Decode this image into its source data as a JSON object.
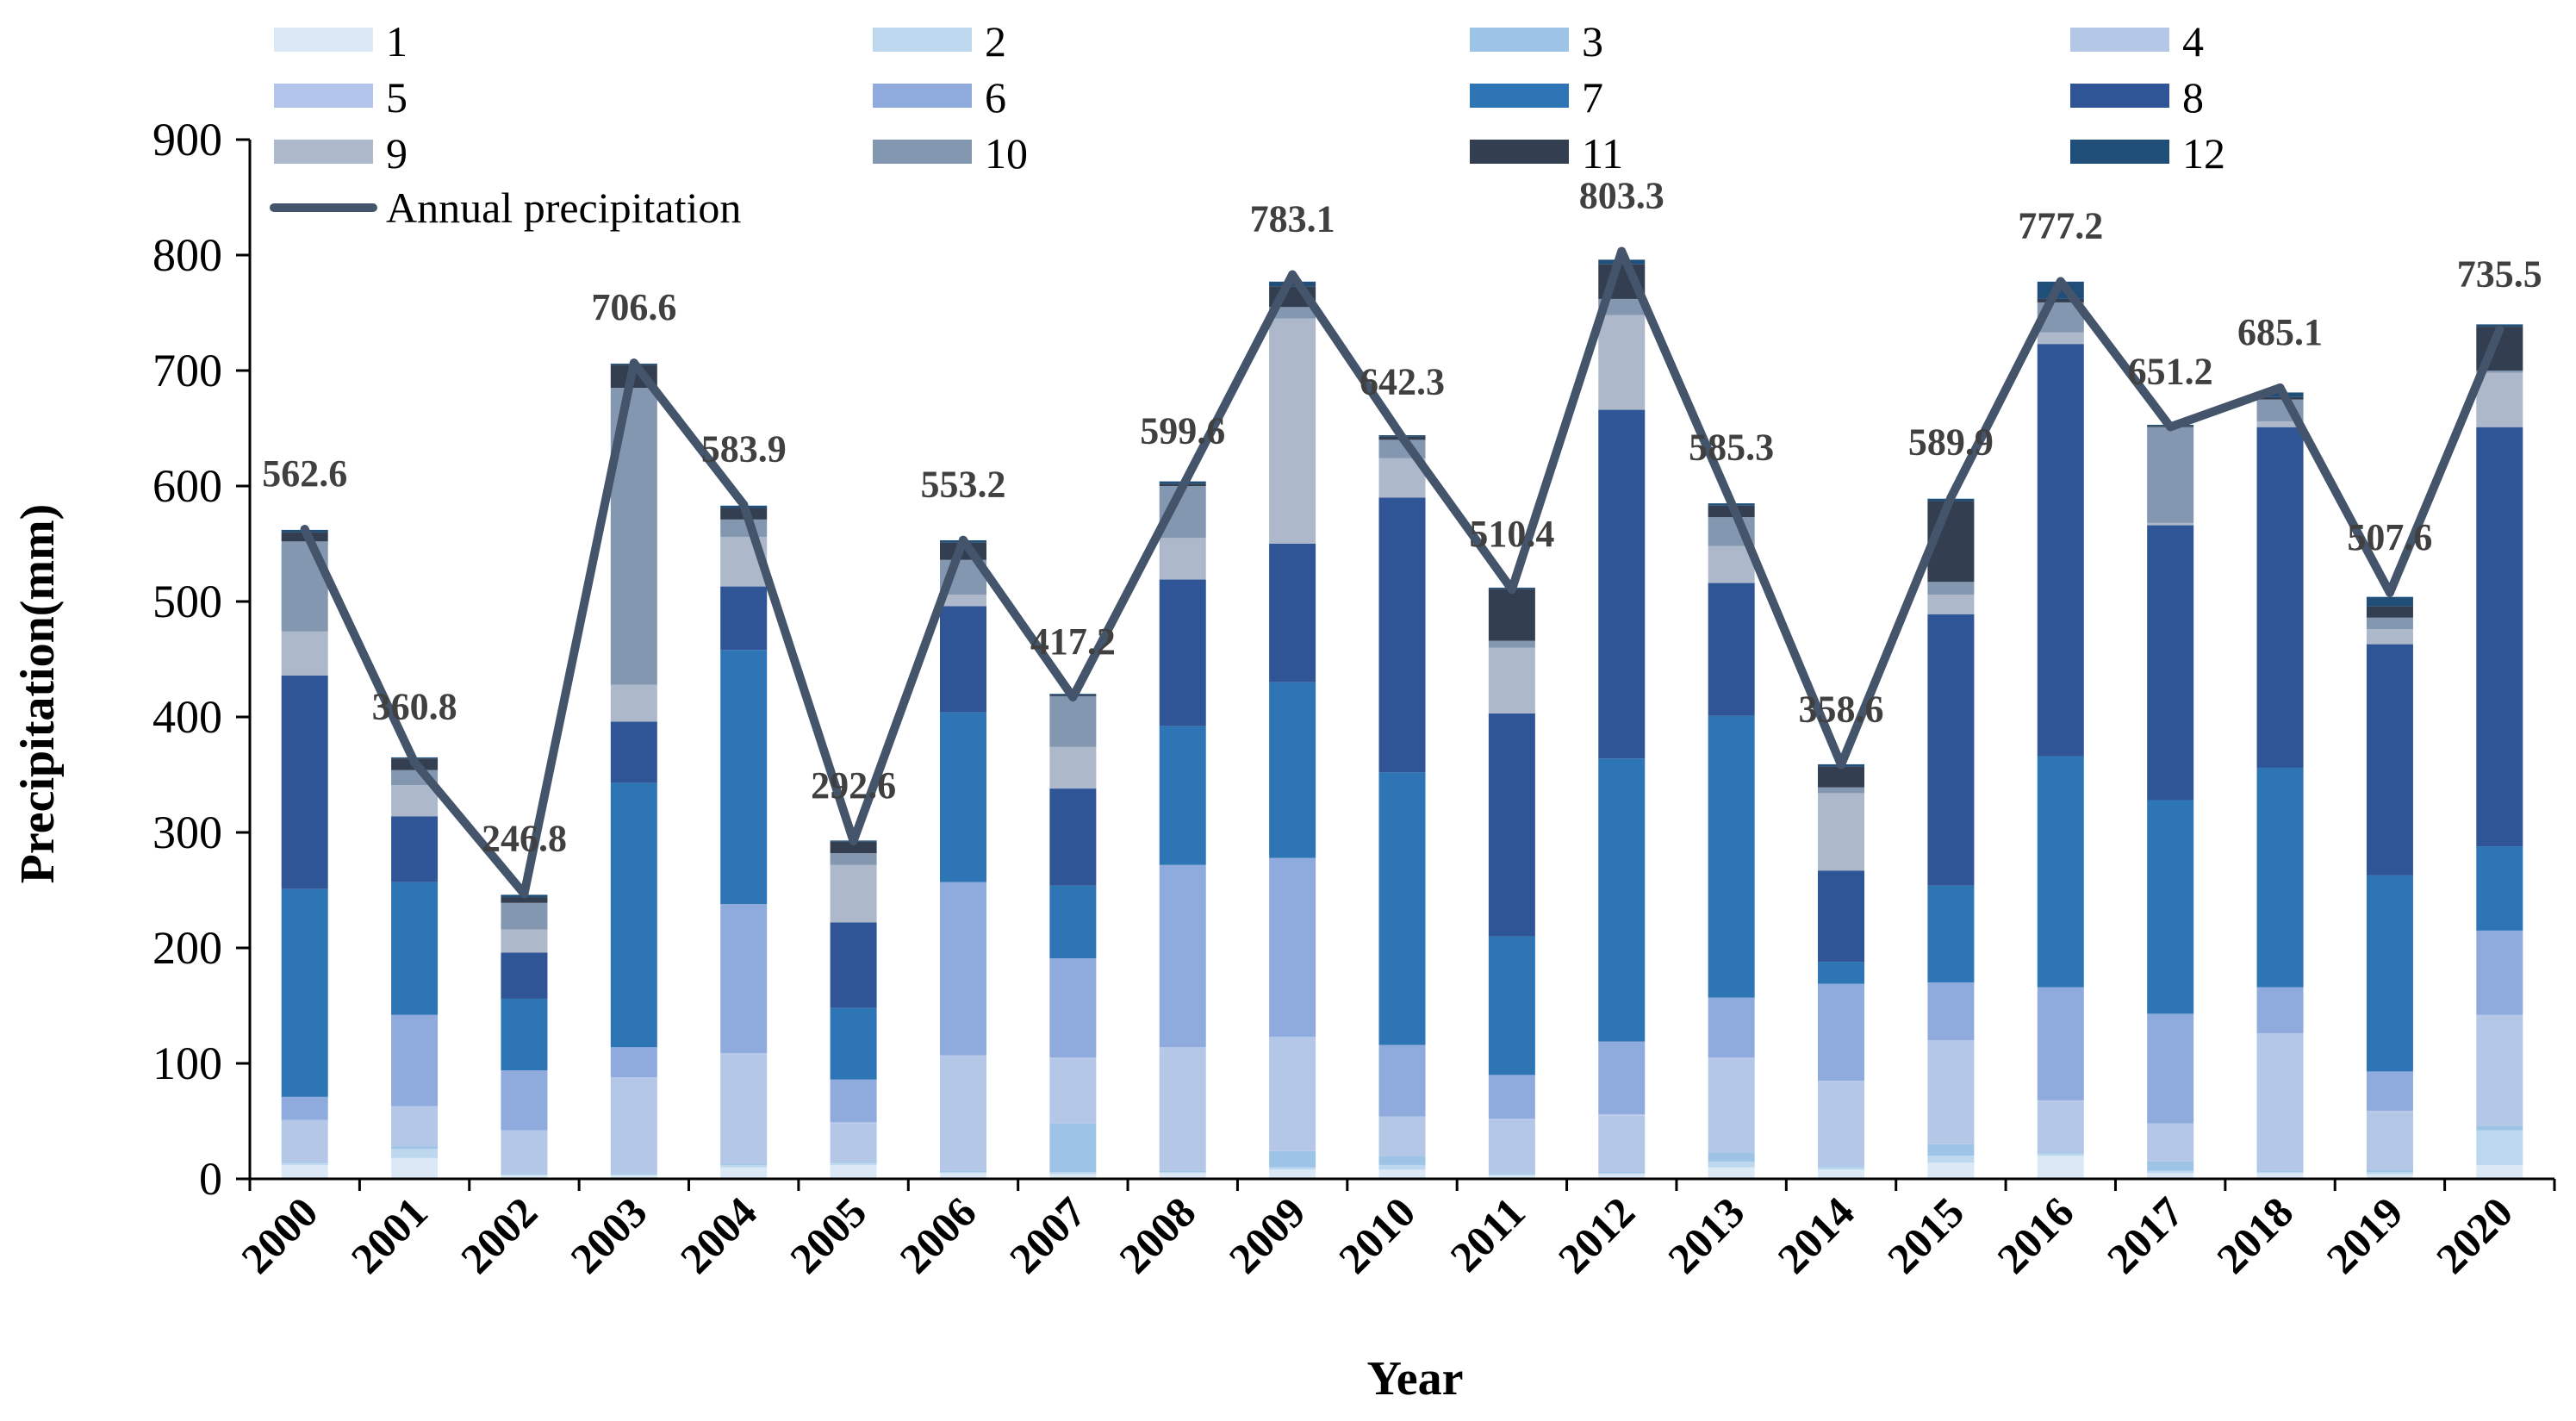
{
  "chart_data": {
    "type": "bar",
    "stacked": true,
    "title": "",
    "xlabel": "Year",
    "ylabel": "Precipitation(mm)",
    "ylim": [
      0,
      900
    ],
    "yticks": [
      0,
      100,
      200,
      300,
      400,
      500,
      600,
      700,
      800,
      900
    ],
    "grid": false,
    "legend_position": "top",
    "categories": [
      "2000",
      "2001",
      "2002",
      "2003",
      "2004",
      "2005",
      "2006",
      "2007",
      "2008",
      "2009",
      "2010",
      "2011",
      "2012",
      "2013",
      "2014",
      "2015",
      "2016",
      "2017",
      "2018",
      "2019",
      "2020"
    ],
    "series": [
      {
        "name": "1",
        "color": "#dbe9f6",
        "values": [
          12,
          18,
          3,
          3,
          10,
          12,
          5,
          4,
          5,
          8,
          8,
          3,
          4,
          10,
          8,
          14,
          20,
          5,
          5,
          4,
          12
        ]
      },
      {
        "name": "2",
        "color": "#bdd7ee",
        "values": [
          2,
          8,
          1,
          1,
          2,
          2,
          1,
          2,
          1,
          2,
          4,
          1,
          1,
          5,
          2,
          6,
          2,
          2,
          1,
          2,
          30
        ]
      },
      {
        "name": "3",
        "color": "#9dc3e6",
        "values": [
          1,
          2,
          1,
          1,
          1,
          1,
          1,
          42,
          1,
          14,
          8,
          1,
          1,
          8,
          1,
          10,
          1,
          8,
          1,
          2,
          4
        ]
      },
      {
        "name": "4",
        "color": "#b4c7e7",
        "values": [
          35,
          34,
          36,
          82,
          95,
          33,
          99,
          56,
          106,
          98,
          33,
          46,
          49,
          81,
          73,
          89,
          44,
          32,
          118,
          50,
          95
        ]
      },
      {
        "name": "5",
        "color": "#b3c5ea",
        "values": [
          1,
          1,
          1,
          1,
          1,
          1,
          1,
          1,
          1,
          1,
          1,
          1,
          1,
          1,
          1,
          1,
          1,
          1,
          1,
          1,
          1
        ]
      },
      {
        "name": "6",
        "color": "#8faadc",
        "values": [
          20,
          79,
          52,
          26,
          129,
          37,
          150,
          86,
          158,
          155,
          62,
          38,
          63,
          52,
          84,
          50,
          98,
          95,
          40,
          34,
          73
        ]
      },
      {
        "name": "7",
        "color": "#2e75b6",
        "values": [
          180,
          115,
          62,
          229,
          220,
          62,
          147,
          63,
          120,
          152,
          236,
          120,
          245,
          244,
          19,
          84,
          200,
          185,
          190,
          170,
          73
        ]
      },
      {
        "name": "8",
        "color": "#2f5597",
        "values": [
          185,
          57,
          40,
          53,
          55,
          74,
          92,
          84,
          127,
          120,
          238,
          193,
          302,
          115,
          79,
          235,
          357,
          238,
          295,
          200,
          363
        ]
      },
      {
        "name": "9",
        "color": "#adb9ca",
        "values": [
          38,
          27,
          20,
          32,
          43,
          50,
          10,
          36,
          36,
          195,
          34,
          57,
          82,
          32,
          67,
          17,
          10,
          2,
          5,
          13,
          47
        ]
      },
      {
        "name": "10",
        "color": "#8497b0",
        "values": [
          78,
          13,
          23,
          257,
          15,
          10,
          30,
          44,
          45,
          10,
          16,
          6,
          14,
          25,
          5,
          11,
          26,
          83,
          19,
          10,
          2
        ]
      },
      {
        "name": "11",
        "color": "#333f50",
        "values": [
          8,
          10,
          5,
          20,
          10,
          10,
          15,
          1,
          2,
          18,
          3,
          45,
          30,
          10,
          18,
          70,
          3,
          1,
          2,
          10,
          38
        ]
      },
      {
        "name": "12",
        "color": "#1f4e79",
        "values": [
          2,
          1,
          2,
          1,
          2,
          1,
          2,
          1,
          2,
          4,
          1,
          1,
          4,
          2,
          2,
          2,
          15,
          1,
          4,
          8,
          2
        ]
      }
    ],
    "line_series": {
      "name": "Annual precipitation",
      "color": "#44546a",
      "values": [
        562.6,
        360.8,
        246.8,
        706.6,
        583.9,
        292.6,
        553.2,
        417.2,
        599.6,
        783.1,
        642.3,
        510.4,
        803.3,
        585.3,
        358.6,
        589.9,
        777.2,
        651.2,
        685.1,
        507.6,
        735.5
      ],
      "labels": [
        "562.6",
        "360.8",
        "246.8",
        "706.6",
        "583.9",
        "292.6",
        "553.2",
        "417.2",
        "599.6",
        "783.1",
        "642.3",
        "510.4",
        "803.3",
        "585.3",
        "358.6",
        "589.9",
        "777.2",
        "651.2",
        "685.1",
        "507.6",
        "735.5"
      ]
    }
  }
}
